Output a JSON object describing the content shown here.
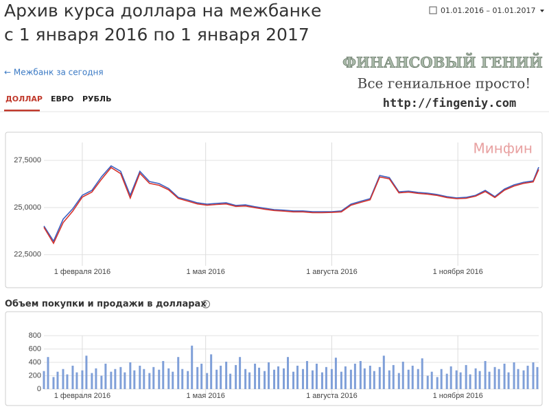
{
  "header": {
    "title_line1": "Архив курса доллара на межбанке",
    "title_line2": "с 1 января 2016 по 1 января 2017",
    "date_range": "01.01.2016 – 01.01.2017",
    "back_link": "← Межбанк за сегодня",
    "tabs": [
      "ДОЛЛАР",
      "ЕВРО",
      "РУБЛЬ"
    ],
    "watermark": {
      "brand": "ФИНАНСОВЫЙ ГЕНИЙ",
      "slogan": "Все гениальное просто!",
      "url": "http://fingeniy.com"
    }
  },
  "chart_data": [
    {
      "type": "line",
      "annotation": "Минфин",
      "x": [
        "2016-01-04",
        "2016-01-11",
        "2016-01-18",
        "2016-01-25",
        "2016-02-01",
        "2016-02-08",
        "2016-02-15",
        "2016-02-22",
        "2016-02-29",
        "2016-03-07",
        "2016-03-14",
        "2016-03-21",
        "2016-03-28",
        "2016-04-04",
        "2016-04-11",
        "2016-04-18",
        "2016-04-25",
        "2016-05-02",
        "2016-05-09",
        "2016-05-16",
        "2016-05-23",
        "2016-05-30",
        "2016-06-06",
        "2016-06-13",
        "2016-06-20",
        "2016-06-27",
        "2016-07-04",
        "2016-07-11",
        "2016-07-18",
        "2016-07-25",
        "2016-08-01",
        "2016-08-08",
        "2016-08-15",
        "2016-08-22",
        "2016-08-29",
        "2016-09-05",
        "2016-09-12",
        "2016-09-19",
        "2016-09-26",
        "2016-10-03",
        "2016-10-10",
        "2016-10-17",
        "2016-10-24",
        "2016-10-31",
        "2016-11-07",
        "2016-11-14",
        "2016-11-21",
        "2016-11-28",
        "2016-12-05",
        "2016-12-12",
        "2016-12-19",
        "2016-12-26",
        "2016-12-30"
      ],
      "series": [
        {
          "color": "#3b5fc0",
          "values": [
            24.02,
            23.22,
            24.38,
            24.93,
            25.65,
            25.91,
            26.63,
            27.21,
            26.92,
            25.65,
            26.92,
            26.38,
            26.27,
            26.01,
            25.54,
            25.4,
            25.25,
            25.18,
            25.22,
            25.25,
            25.11,
            25.14,
            25.04,
            24.96,
            24.89,
            24.86,
            24.82,
            24.82,
            24.78,
            24.78,
            24.78,
            24.82,
            25.18,
            25.33,
            25.47,
            26.7,
            26.59,
            25.83,
            25.87,
            25.8,
            25.76,
            25.69,
            25.58,
            25.51,
            25.54,
            25.65,
            25.91,
            25.58,
            25.98,
            26.2,
            26.34,
            26.41,
            27.14
          ]
        },
        {
          "color": "#d6332c",
          "values": [
            23.95,
            23.1,
            24.2,
            24.8,
            25.55,
            25.82,
            26.5,
            27.12,
            26.8,
            25.5,
            26.82,
            26.28,
            26.18,
            25.94,
            25.48,
            25.34,
            25.19,
            25.12,
            25.16,
            25.19,
            25.06,
            25.08,
            24.99,
            24.91,
            24.84,
            24.81,
            24.77,
            24.77,
            24.73,
            24.73,
            24.74,
            24.77,
            25.12,
            25.27,
            25.41,
            26.62,
            26.52,
            25.78,
            25.82,
            25.75,
            25.71,
            25.64,
            25.53,
            25.47,
            25.49,
            25.6,
            25.85,
            25.53,
            25.92,
            26.14,
            26.28,
            26.36,
            27.02
          ]
        }
      ],
      "xlim": [
        "2016-01-04",
        "2016-12-30"
      ],
      "xticks": [
        {
          "value": "2016-02-01",
          "label": "1 февраля 2016"
        },
        {
          "value": "2016-05-01",
          "label": "1 мая 2016"
        },
        {
          "value": "2016-08-01",
          "label": "1 августа 2016"
        },
        {
          "value": "2016-11-01",
          "label": "1 ноября 2016"
        }
      ],
      "ylim": [
        22.2,
        28.45
      ],
      "yticks": [
        {
          "value": 22.5,
          "label": "22,5000"
        },
        {
          "value": 25,
          "label": "25,0000"
        },
        {
          "value": 27.5,
          "label": "27,5000"
        }
      ],
      "grid": true
    },
    {
      "type": "bar",
      "title": "Объем покупки и продажи в долларах",
      "color": "#7f9fd8",
      "x": [
        "2016-01-04",
        "2016-01-07",
        "2016-01-11",
        "2016-01-14",
        "2016-01-18",
        "2016-01-21",
        "2016-01-25",
        "2016-01-28",
        "2016-02-01",
        "2016-02-04",
        "2016-02-08",
        "2016-02-11",
        "2016-02-15",
        "2016-02-18",
        "2016-02-22",
        "2016-02-25",
        "2016-02-29",
        "2016-03-03",
        "2016-03-07",
        "2016-03-10",
        "2016-03-14",
        "2016-03-17",
        "2016-03-21",
        "2016-03-24",
        "2016-03-28",
        "2016-03-31",
        "2016-04-04",
        "2016-04-07",
        "2016-04-11",
        "2016-04-14",
        "2016-04-18",
        "2016-04-21",
        "2016-04-25",
        "2016-04-28",
        "2016-05-02",
        "2016-05-05",
        "2016-05-09",
        "2016-05-12",
        "2016-05-16",
        "2016-05-19",
        "2016-05-23",
        "2016-05-26",
        "2016-05-30",
        "2016-06-02",
        "2016-06-06",
        "2016-06-09",
        "2016-06-13",
        "2016-06-16",
        "2016-06-20",
        "2016-06-23",
        "2016-06-27",
        "2016-06-30",
        "2016-07-04",
        "2016-07-07",
        "2016-07-11",
        "2016-07-14",
        "2016-07-18",
        "2016-07-21",
        "2016-07-25",
        "2016-07-28",
        "2016-08-01",
        "2016-08-04",
        "2016-08-08",
        "2016-08-11",
        "2016-08-15",
        "2016-08-18",
        "2016-08-22",
        "2016-08-25",
        "2016-08-29",
        "2016-09-01",
        "2016-09-05",
        "2016-09-08",
        "2016-09-12",
        "2016-09-15",
        "2016-09-19",
        "2016-09-22",
        "2016-09-26",
        "2016-09-29",
        "2016-10-03",
        "2016-10-06",
        "2016-10-10",
        "2016-10-13",
        "2016-10-17",
        "2016-10-20",
        "2016-10-24",
        "2016-10-27",
        "2016-10-31",
        "2016-11-03",
        "2016-11-07",
        "2016-11-10",
        "2016-11-14",
        "2016-11-17",
        "2016-11-21",
        "2016-11-24",
        "2016-11-28",
        "2016-12-01",
        "2016-12-05",
        "2016-12-08",
        "2016-12-12",
        "2016-12-15",
        "2016-12-19",
        "2016-12-22",
        "2016-12-26",
        "2016-12-29"
      ],
      "values": [
        270,
        480,
        180,
        260,
        300,
        220,
        350,
        250,
        280,
        500,
        240,
        310,
        200,
        380,
        260,
        300,
        330,
        250,
        400,
        280,
        350,
        300,
        240,
        330,
        290,
        420,
        310,
        260,
        480,
        300,
        270,
        650,
        330,
        380,
        240,
        520,
        290,
        350,
        410,
        230,
        360,
        480,
        300,
        250,
        380,
        320,
        270,
        400,
        290,
        340,
        310,
        480,
        260,
        350,
        300,
        420,
        280,
        380,
        250,
        330,
        300,
        470,
        260,
        340,
        290,
        380,
        420,
        310,
        350,
        270,
        330,
        500,
        280,
        360,
        240,
        410,
        290,
        350,
        300,
        460,
        200,
        260,
        180,
        300,
        230,
        340,
        280,
        250,
        360,
        220,
        310,
        270,
        420,
        260,
        330,
        300,
        380,
        250,
        400,
        300,
        280,
        350,
        400,
        330
      ],
      "xlim": [
        "2016-01-04",
        "2016-12-30"
      ],
      "xticks": [
        {
          "value": "2016-02-01",
          "label": "1 февраля 2016"
        },
        {
          "value": "2016-05-01",
          "label": "1 мая 2016"
        },
        {
          "value": "2016-08-01",
          "label": "1 августа 2016"
        },
        {
          "value": "2016-11-01",
          "label": "1 ноября 2016"
        }
      ],
      "ylim": [
        0,
        800
      ],
      "yticks": [
        0,
        200,
        400,
        600,
        800
      ],
      "grid": true
    }
  ]
}
